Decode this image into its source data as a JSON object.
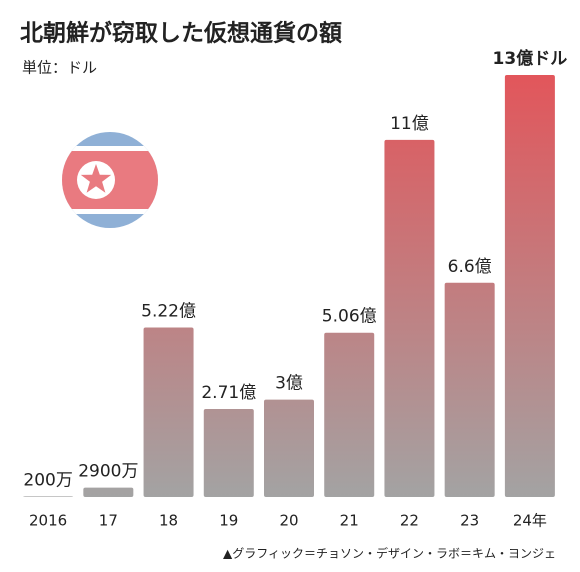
{
  "chart_data": {
    "type": "bar",
    "title": "北朝鮮が窃取した仮想通貨の額",
    "subtitle": "単位：ドル",
    "categories": [
      "2016",
      "17",
      "18",
      "19",
      "20",
      "21",
      "22",
      "23",
      "24年"
    ],
    "values": [
      2000000,
      29000000,
      522000000,
      271000000,
      300000000,
      506000000,
      1100000000,
      660000000,
      1300000000
    ],
    "value_labels": [
      "200万",
      "2900万",
      "5.22億",
      "2.71億",
      "3億",
      "5.06億",
      "11億",
      "6.6億",
      "13億ドル"
    ],
    "color": "#a3a3a3",
    "top_color": "#e2565b",
    "credit": "▲グラフィック＝チョソン・デザイン・ラボ＝キム・ヨンジェ"
  }
}
